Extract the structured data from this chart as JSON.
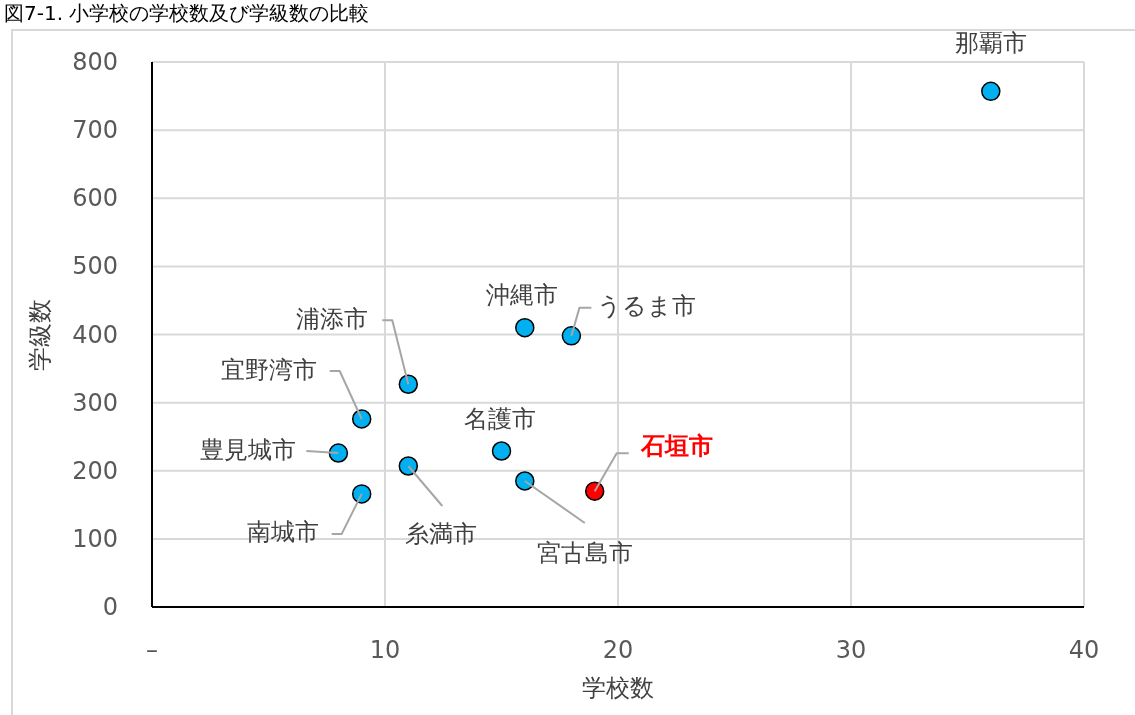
{
  "chart_data": {
    "type": "scatter",
    "title": "図7-1. 小学校の学校数及び学級数の比較",
    "xlabel": "学校数",
    "ylabel": "学級数",
    "xlim": [
      0,
      40
    ],
    "xticks": [
      {
        "value": 0,
        "label": "–"
      },
      10,
      20,
      30,
      40
    ],
    "ylim": [
      0,
      800
    ],
    "yticks": [
      0,
      100,
      200,
      300,
      400,
      500,
      600,
      700,
      800
    ],
    "grid": true,
    "marker": "circle",
    "series": [
      {
        "color": "#00b0f0",
        "x": [
          36,
          16,
          18,
          11,
          9,
          8,
          11,
          9,
          15,
          16,
          19
        ],
        "values": [
          757,
          410,
          398,
          327,
          276,
          226,
          207,
          166,
          229,
          185,
          170
        ],
        "colors": [
          "#00b0f0",
          "#00b0f0",
          "#00b0f0",
          "#00b0f0",
          "#00b0f0",
          "#00b0f0",
          "#00b0f0",
          "#00b0f0",
          "#00b0f0",
          "#00b0f0",
          "#ff0000"
        ]
      }
    ],
    "annotations": [
      {
        "text": "那覇市",
        "x": 36,
        "y": 757
      },
      {
        "text": "沖縄市",
        "x": 16,
        "y": 410
      },
      {
        "text": "うるま市",
        "x": 18,
        "y": 398
      },
      {
        "text": "浦添市",
        "x": 11,
        "y": 327
      },
      {
        "text": "宜野湾市",
        "x": 9,
        "y": 276
      },
      {
        "text": "豊見城市",
        "x": 8,
        "y": 226
      },
      {
        "text": "糸満市",
        "x": 11,
        "y": 207
      },
      {
        "text": "南城市",
        "x": 9,
        "y": 166
      },
      {
        "text": "名護市",
        "x": 15,
        "y": 229
      },
      {
        "text": "宮古島市",
        "x": 16,
        "y": 185
      },
      {
        "text": "石垣市",
        "x": 19,
        "y": 170
      }
    ]
  }
}
